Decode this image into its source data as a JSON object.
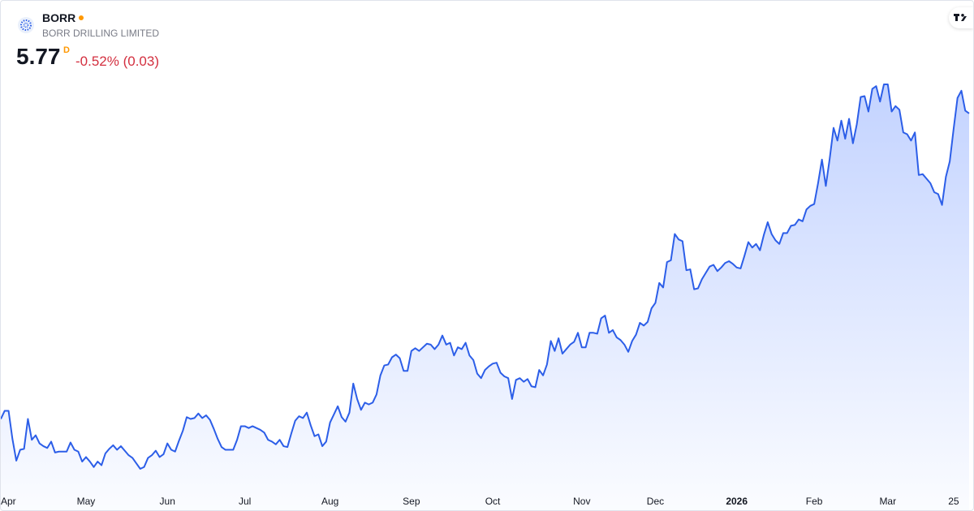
{
  "header": {
    "symbol": "BORR",
    "name": "BORR DRILLING LIMITED",
    "price": 5.77,
    "interval": "D",
    "change": "-0.52% (0.03)"
  },
  "chart_data": {
    "type": "area",
    "color": "#2c5ee8",
    "values": [
      2.4,
      2.49,
      2.49,
      2.18,
      1.94,
      2.06,
      2.07,
      2.4,
      2.17,
      2.22,
      2.13,
      2.1,
      2.08,
      2.15,
      2.03,
      2.04,
      2.04,
      2.04,
      2.14,
      2.06,
      2.04,
      1.93,
      1.98,
      1.93,
      1.87,
      1.93,
      1.89,
      2.02,
      2.07,
      2.11,
      2.06,
      2.1,
      2.05,
      2.0,
      1.97,
      1.91,
      1.85,
      1.87,
      1.97,
      2.0,
      2.05,
      1.98,
      2.01,
      2.13,
      2.06,
      2.04,
      2.16,
      2.27,
      2.42,
      2.4,
      2.41,
      2.46,
      2.41,
      2.44,
      2.39,
      2.29,
      2.18,
      2.09,
      2.06,
      2.06,
      2.06,
      2.17,
      2.32,
      2.32,
      2.3,
      2.32,
      2.3,
      2.28,
      2.25,
      2.17,
      2.15,
      2.12,
      2.17,
      2.1,
      2.09,
      2.24,
      2.38,
      2.43,
      2.41,
      2.47,
      2.33,
      2.21,
      2.23,
      2.1,
      2.15,
      2.36,
      2.45,
      2.54,
      2.42,
      2.37,
      2.47,
      2.79,
      2.62,
      2.5,
      2.58,
      2.56,
      2.58,
      2.67,
      2.88,
      2.99,
      3.0,
      3.08,
      3.11,
      3.07,
      2.93,
      2.93,
      3.15,
      3.18,
      3.15,
      3.19,
      3.23,
      3.22,
      3.17,
      3.22,
      3.32,
      3.22,
      3.24,
      3.1,
      3.19,
      3.17,
      3.24,
      3.1,
      3.05,
      2.9,
      2.85,
      2.94,
      2.98,
      3.01,
      3.02,
      2.91,
      2.87,
      2.85,
      2.62,
      2.83,
      2.85,
      2.81,
      2.84,
      2.76,
      2.75,
      2.94,
      2.88,
      3.0,
      3.26,
      3.15,
      3.29,
      3.12,
      3.17,
      3.22,
      3.25,
      3.35,
      3.19,
      3.19,
      3.35,
      3.35,
      3.34,
      3.51,
      3.54,
      3.35,
      3.38,
      3.3,
      3.27,
      3.22,
      3.14,
      3.26,
      3.33,
      3.46,
      3.43,
      3.47,
      3.62,
      3.68,
      3.9,
      3.85,
      4.13,
      4.15,
      4.44,
      4.38,
      4.36,
      4.04,
      4.05,
      3.83,
      3.84,
      3.94,
      4.01,
      4.08,
      4.1,
      4.03,
      4.07,
      4.12,
      4.14,
      4.11,
      4.07,
      4.06,
      4.2,
      4.35,
      4.29,
      4.33,
      4.26,
      4.43,
      4.57,
      4.44,
      4.37,
      4.33,
      4.45,
      4.45,
      4.53,
      4.54,
      4.6,
      4.58,
      4.71,
      4.75,
      4.77,
      5.0,
      5.26,
      4.97,
      5.27,
      5.61,
      5.47,
      5.69,
      5.49,
      5.71,
      5.44,
      5.65,
      5.95,
      5.96,
      5.79,
      6.04,
      6.07,
      5.9,
      6.09,
      6.09,
      5.79,
      5.85,
      5.81,
      5.56,
      5.54,
      5.47,
      5.56,
      5.09,
      5.1,
      5.05,
      5.0,
      4.9,
      4.88,
      4.76,
      5.07,
      5.24,
      5.6,
      5.94,
      6.02,
      5.8,
      5.77
    ],
    "xticks": [
      {
        "value": 0,
        "label": "Apr"
      },
      {
        "value": 22,
        "label": "May"
      },
      {
        "value": 43,
        "label": "Jun"
      },
      {
        "value": 63,
        "label": "Jul"
      },
      {
        "value": 85,
        "label": "Aug"
      },
      {
        "value": 106,
        "label": "Sep"
      },
      {
        "value": 127,
        "label": "Oct"
      },
      {
        "value": 150,
        "label": "Nov"
      },
      {
        "value": 169,
        "label": "Dec"
      },
      {
        "value": 190,
        "label": "2026",
        "bold": true
      },
      {
        "value": 210,
        "label": "Feb"
      },
      {
        "value": 229,
        "label": "Mar"
      },
      {
        "value": 246,
        "label": "25"
      }
    ]
  }
}
